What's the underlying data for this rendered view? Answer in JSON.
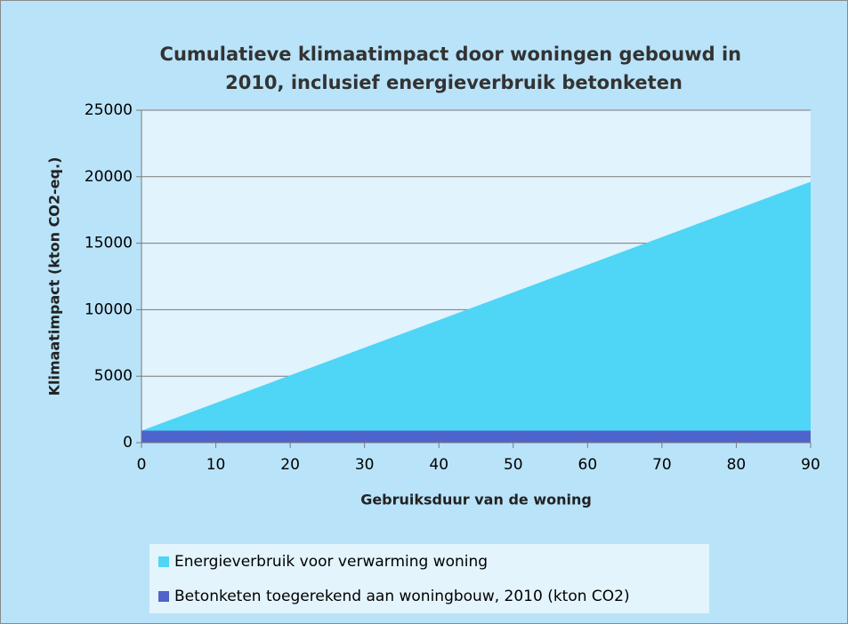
{
  "chart_data": {
    "type": "stacked_area",
    "title": [
      "Cumulatieve klimaatimpact door woningen gebouwd in",
      "2010, inclusief energieverbruik betonketen"
    ],
    "x_label": "Gebruiksduur van de woning",
    "y_label": "Klimaatimpact (kton CO2-eq.)",
    "x": [
      0,
      10,
      20,
      30,
      40,
      50,
      60,
      70,
      80,
      90
    ],
    "series": [
      {
        "name": "Energieverbruik voor verwarming woning",
        "color": "#4fd5f5",
        "values": [
          0,
          2080,
          4160,
          6240,
          8320,
          10400,
          12480,
          14560,
          16640,
          18720
        ]
      },
      {
        "name": "Betonketen toegerekend aan woningbouw, 2010 (kton CO2)",
        "color": "#4f63cc",
        "values": [
          900,
          900,
          900,
          900,
          900,
          900,
          900,
          900,
          900,
          900
        ]
      }
    ],
    "xlim": [
      0,
      90
    ],
    "xticks": [
      0,
      10,
      20,
      30,
      40,
      50,
      60,
      70,
      80,
      90
    ],
    "ylim": [
      0,
      25000
    ],
    "yticks": [
      0,
      5000,
      10000,
      15000,
      20000,
      25000
    ],
    "grid": true,
    "legend": "bottom"
  }
}
